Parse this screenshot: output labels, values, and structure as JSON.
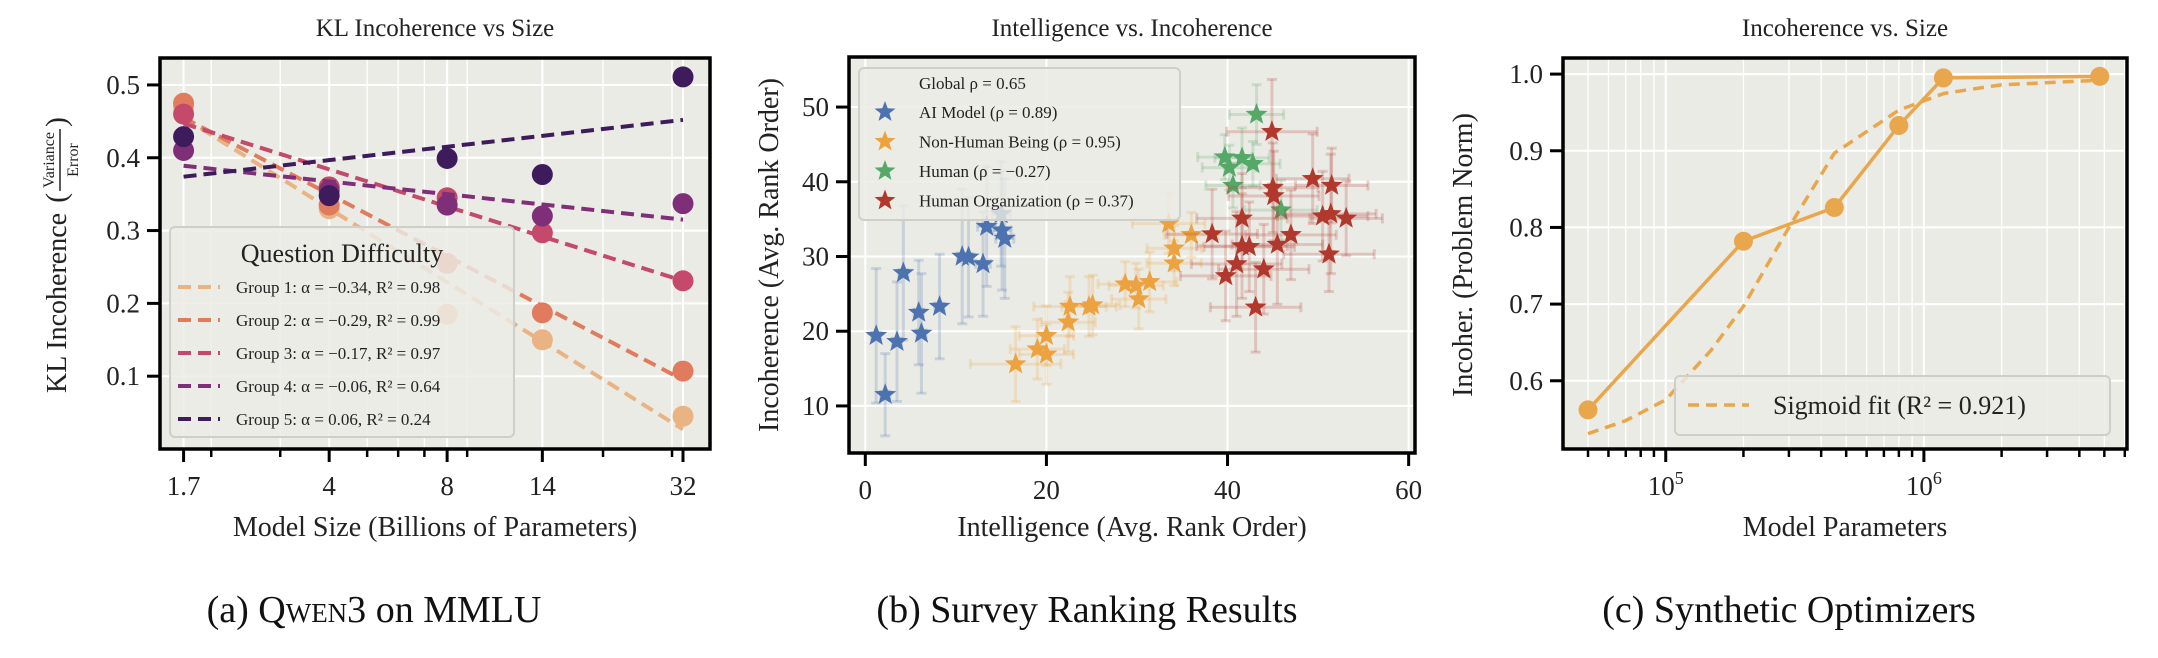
{
  "captions": {
    "a_prefix": "(a) ",
    "a_model": "Qwen3",
    "a_suffix": " on MMLU",
    "b": "(b) Survey Ranking Results",
    "c": "(c) Synthetic Optimizers"
  },
  "chart_data": [
    {
      "type": "scatter",
      "title": "KL Incoherence vs Size",
      "xlabel": "Model Size (Billions of Parameters)",
      "ylabel": "KL Incoherence",
      "ylabel_fraction": {
        "numerator": "Variance",
        "denominator": "Error"
      },
      "xscale": "log",
      "xlim": [
        1.48,
        37.5
      ],
      "ylim": [
        0.0,
        0.537
      ],
      "x_ticks": [
        1.7,
        4,
        8,
        14,
        32
      ],
      "x_tick_labels": [
        "1.7",
        "4",
        "8",
        "14",
        "32"
      ],
      "x_minor_ticks": [
        2,
        3,
        5,
        6,
        7,
        9,
        20,
        30
      ],
      "y_ticks": [
        0.1,
        0.2,
        0.3,
        0.4,
        0.5
      ],
      "y_tick_labels": [
        "0.1",
        "0.2",
        "0.3",
        "0.4",
        "0.5"
      ],
      "grid": true,
      "legend": {
        "title": "Question Difficulty",
        "placement": "lower-left"
      },
      "x": [
        1.7,
        4,
        8,
        14,
        32
      ],
      "series": [
        {
          "name": "Group 1: α = −0.34, R² = 0.98",
          "color": "#e9b384",
          "values": [
            0.47,
            0.33,
            0.185,
            0.15,
            0.045
          ],
          "fit_line": {
            "x": [
              1.7,
              32
            ],
            "y": [
              0.455,
              0.027
            ]
          }
        },
        {
          "name": "Group 2: α = −0.29, R² = 0.99",
          "color": "#e07b5e",
          "values": [
            0.475,
            0.335,
            0.255,
            0.187,
            0.107
          ],
          "fit_line": {
            "x": [
              1.7,
              32
            ],
            "y": [
              0.455,
              0.095
            ]
          }
        },
        {
          "name": "Group 3: α = −0.17, R² = 0.97",
          "color": "#c4496a",
          "values": [
            0.46,
            0.36,
            0.345,
            0.297,
            0.231
          ],
          "fit_line": {
            "x": [
              1.7,
              32
            ],
            "y": [
              0.447,
              0.231
            ]
          }
        },
        {
          "name": "Group 4: α = −0.06, R² = 0.64",
          "color": "#7f2f78",
          "values": [
            0.41,
            0.355,
            0.335,
            0.32,
            0.337
          ],
          "fit_line": {
            "x": [
              1.7,
              32
            ],
            "y": [
              0.389,
              0.315
            ]
          }
        },
        {
          "name": "Group 5: α = 0.06, R² = 0.24",
          "color": "#3e1c5b",
          "values": [
            0.429,
            0.348,
            0.399,
            0.377,
            0.511
          ],
          "fit_line": {
            "x": [
              1.7,
              32
            ],
            "y": [
              0.374,
              0.452
            ]
          }
        }
      ]
    },
    {
      "type": "scatter",
      "title": "Intelligence vs. Incoherence",
      "xlabel": "Intelligence (Avg. Rank Order)",
      "ylabel": "Incoherence (Avg. Rank Order)",
      "xlim": [
        -1.8,
        60.7
      ],
      "ylim": [
        3.7,
        56.7
      ],
      "x_ticks": [
        0,
        20,
        40,
        60
      ],
      "x_tick_labels": [
        "0",
        "20",
        "40",
        "60"
      ],
      "y_ticks": [
        10,
        20,
        30,
        40,
        50
      ],
      "y_tick_labels": [
        "10",
        "20",
        "30",
        "40",
        "50"
      ],
      "grid": true,
      "legend": {
        "placement": "top-left",
        "header": "Global ρ = 0.65"
      },
      "point_format": [
        "x",
        "y",
        "xerr",
        "yerr"
      ],
      "series": [
        {
          "name": "AI Model (ρ = 0.89)",
          "color": "#4c72b0",
          "points": [
            [
              1.2,
              19.4,
              0.5,
              9
            ],
            [
              2.2,
              11.5,
              0.5,
              5.5
            ],
            [
              3.5,
              18.6,
              0.5,
              8
            ],
            [
              4.2,
              27.8,
              0.5,
              9
            ],
            [
              5.9,
              22.5,
              0.5,
              7
            ],
            [
              6.2,
              19.7,
              0.5,
              8
            ],
            [
              8.2,
              23.3,
              0.5,
              7
            ],
            [
              10.7,
              30.0,
              0.5,
              9
            ],
            [
              11.4,
              29.9,
              0.5,
              8
            ],
            [
              13.0,
              29.0,
              0.8,
              7
            ],
            [
              13.4,
              34.0,
              1,
              8
            ],
            [
              15.0,
              35.7,
              1,
              7
            ],
            [
              15.1,
              33.5,
              1,
              8
            ],
            [
              15.4,
              32.4,
              1,
              8
            ]
          ]
        },
        {
          "name": "Non-Human Being (ρ = 0.95)",
          "color": "#eba23f",
          "points": [
            [
              16.6,
              15.6,
              5,
              5
            ],
            [
              19.0,
              17.6,
              3,
              4
            ],
            [
              20.0,
              19.4,
              3,
              4
            ],
            [
              20.0,
              16.9,
              3,
              4
            ],
            [
              22.4,
              21.2,
              3,
              4
            ],
            [
              22.6,
              23.3,
              4,
              4
            ],
            [
              24.7,
              23.3,
              3,
              4
            ],
            [
              25.1,
              23.5,
              3,
              4
            ],
            [
              28.7,
              26.3,
              3,
              3
            ],
            [
              29.9,
              26.1,
              3,
              3
            ],
            [
              30.2,
              24.3,
              3,
              4
            ],
            [
              31.4,
              26.6,
              3,
              4
            ],
            [
              33.5,
              34.4,
              4,
              4
            ],
            [
              34.1,
              31.1,
              3,
              3
            ],
            [
              34.1,
              29.1,
              3,
              3
            ],
            [
              36.0,
              32.9,
              3,
              3
            ]
          ]
        },
        {
          "name": "Human (ρ = −0.27)",
          "color": "#55a868",
          "points": [
            [
              39.7,
              43.3,
              3,
              3
            ],
            [
              40.2,
              41.9,
              3,
              3
            ],
            [
              40.6,
              39.5,
              3,
              3
            ],
            [
              41.6,
              43.2,
              3,
              4
            ],
            [
              42.8,
              42.4,
              3,
              3
            ],
            [
              43.2,
              49.0,
              3,
              4
            ],
            [
              45.9,
              36.2,
              4,
              4
            ]
          ]
        },
        {
          "name": "Human Organization (ρ = 0.37)",
          "color": "#b0382c",
          "points": [
            [
              38.3,
              33.0,
              5,
              6
            ],
            [
              39.8,
              27.4,
              5,
              6
            ],
            [
              41.0,
              29.0,
              5,
              7
            ],
            [
              41.6,
              35.1,
              5,
              6
            ],
            [
              41.6,
              31.4,
              5,
              7
            ],
            [
              42.4,
              31.3,
              5,
              6
            ],
            [
              43.1,
              23.2,
              5,
              6
            ],
            [
              44.0,
              28.3,
              5,
              6
            ],
            [
              44.9,
              46.7,
              5,
              7
            ],
            [
              45.0,
              39.2,
              5,
              6
            ],
            [
              45.1,
              38.1,
              5,
              6
            ],
            [
              45.5,
              31.6,
              5,
              8
            ],
            [
              47.0,
              32.9,
              5,
              6
            ],
            [
              49.4,
              40.4,
              4,
              6
            ],
            [
              50.5,
              35.4,
              5,
              6
            ],
            [
              51.4,
              35.7,
              5,
              8
            ],
            [
              51.5,
              39.5,
              4,
              5
            ],
            [
              51.2,
              30.3,
              5,
              5
            ],
            [
              53.1,
              35.1,
              4,
              5
            ]
          ]
        }
      ]
    },
    {
      "type": "line",
      "title": "Incoherence vs. Size",
      "xlabel": "Model Parameters",
      "ylabel": "Incoher. (Problem Norm)",
      "xscale": "log",
      "xlim": [
        40000,
        6120000
      ],
      "ylim": [
        0.511,
        1.021
      ],
      "x_ticks": [
        100000,
        1000000
      ],
      "x_tick_labels": [
        {
          "base": "10",
          "exp": "5"
        },
        {
          "base": "10",
          "exp": "6"
        }
      ],
      "x_minor_ticks": [
        50000,
        60000,
        70000,
        80000,
        90000,
        200000,
        300000,
        400000,
        500000,
        600000,
        700000,
        800000,
        900000,
        2000000,
        3000000,
        4000000,
        5000000,
        6000000
      ],
      "y_ticks": [
        0.6,
        0.7,
        0.8,
        0.9,
        1.0
      ],
      "y_tick_labels": [
        "0.6",
        "0.7",
        "0.8",
        "0.9",
        "1.0"
      ],
      "grid": true,
      "color": "#e8a74c",
      "legend": {
        "placement": "lower-right"
      },
      "x": [
        50000,
        200000,
        450000,
        800000,
        1190000,
        4800000
      ],
      "values": [
        0.562,
        0.782,
        0.826,
        0.933,
        0.995,
        0.997
      ],
      "fit": {
        "name": "Sigmoid fit (R² = 0.921)",
        "x": [
          50000,
          70000,
          100000,
          150000,
          200000,
          300000,
          450000,
          800000,
          1200000,
          2000000,
          4800000
        ],
        "y": [
          0.531,
          0.548,
          0.575,
          0.64,
          0.697,
          0.8,
          0.897,
          0.953,
          0.975,
          0.986,
          0.992
        ]
      }
    }
  ]
}
